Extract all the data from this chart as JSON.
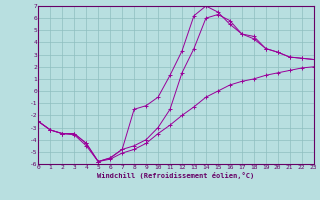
{
  "xlabel": "Windchill (Refroidissement éolien,°C)",
  "background_color": "#b8dfe0",
  "grid_color": "#8fbfc0",
  "line_color": "#990099",
  "xlim": [
    0,
    23
  ],
  "ylim": [
    -6,
    7
  ],
  "xticks": [
    0,
    1,
    2,
    3,
    4,
    5,
    6,
    7,
    8,
    9,
    10,
    11,
    12,
    13,
    14,
    15,
    16,
    17,
    18,
    19,
    20,
    21,
    22,
    23
  ],
  "yticks": [
    -6,
    -5,
    -4,
    -3,
    -2,
    -1,
    0,
    1,
    2,
    3,
    4,
    5,
    6,
    7
  ],
  "series1_x": [
    0,
    1,
    2,
    3,
    4,
    5,
    6,
    7,
    8,
    9,
    10,
    11,
    12,
    13,
    14,
    15,
    16,
    17,
    18,
    19,
    20,
    21,
    22,
    23
  ],
  "series1_y": [
    -2.5,
    -3.2,
    -3.5,
    -3.6,
    -4.5,
    -5.8,
    -5.6,
    -5.1,
    -4.8,
    -4.3,
    -3.5,
    -2.8,
    -2.0,
    -1.3,
    -0.5,
    0.0,
    0.5,
    0.8,
    1.0,
    1.3,
    1.5,
    1.7,
    1.9,
    2.0
  ],
  "series2_x": [
    0,
    1,
    2,
    3,
    4,
    5,
    6,
    7,
    8,
    9,
    10,
    11,
    12,
    13,
    14,
    15,
    16,
    17,
    18,
    19,
    20,
    21,
    22,
    23
  ],
  "series2_y": [
    -2.5,
    -3.2,
    -3.5,
    -3.5,
    -4.3,
    -5.8,
    -5.5,
    -4.8,
    -4.5,
    -4.0,
    -3.0,
    -1.5,
    1.5,
    3.5,
    6.0,
    6.3,
    5.8,
    4.7,
    4.5,
    3.5,
    3.2,
    2.8,
    2.7,
    2.6
  ],
  "series3_x": [
    0,
    1,
    2,
    3,
    4,
    5,
    6,
    7,
    8,
    9,
    10,
    11,
    12,
    13,
    14,
    15,
    16,
    17,
    18,
    19,
    20,
    21,
    22,
    23
  ],
  "series3_y": [
    -2.5,
    -3.2,
    -3.5,
    -3.5,
    -4.3,
    -5.8,
    -5.5,
    -4.8,
    -1.5,
    -1.2,
    -0.5,
    1.3,
    3.3,
    6.2,
    7.0,
    6.5,
    5.5,
    4.7,
    4.3,
    3.5,
    3.2,
    2.8,
    2.7,
    2.6
  ]
}
